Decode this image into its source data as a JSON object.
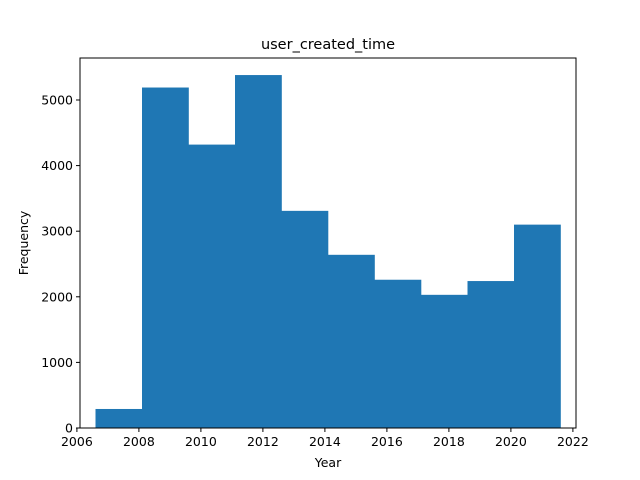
{
  "chart_data": {
    "type": "bar",
    "title": "user_created_time",
    "xlabel": "Year",
    "ylabel": "Frequency",
    "bar_color": "#1f77b4",
    "grid": false,
    "xlim": [
      2006.1,
      2022.1
    ],
    "ylim": [
      0,
      5640
    ],
    "xticks": [
      2006,
      2008,
      2010,
      2012,
      2014,
      2016,
      2018,
      2020,
      2022
    ],
    "yticks": [
      0,
      1000,
      2000,
      3000,
      4000,
      5000
    ],
    "bin_edges": [
      2006.6,
      2008.1,
      2009.6,
      2011.1,
      2012.6,
      2014.1,
      2015.6,
      2017.1,
      2018.6,
      2020.1,
      2021.6
    ],
    "values": [
      290,
      5190,
      4320,
      5380,
      3310,
      2640,
      2260,
      2030,
      2240,
      3100
    ]
  }
}
